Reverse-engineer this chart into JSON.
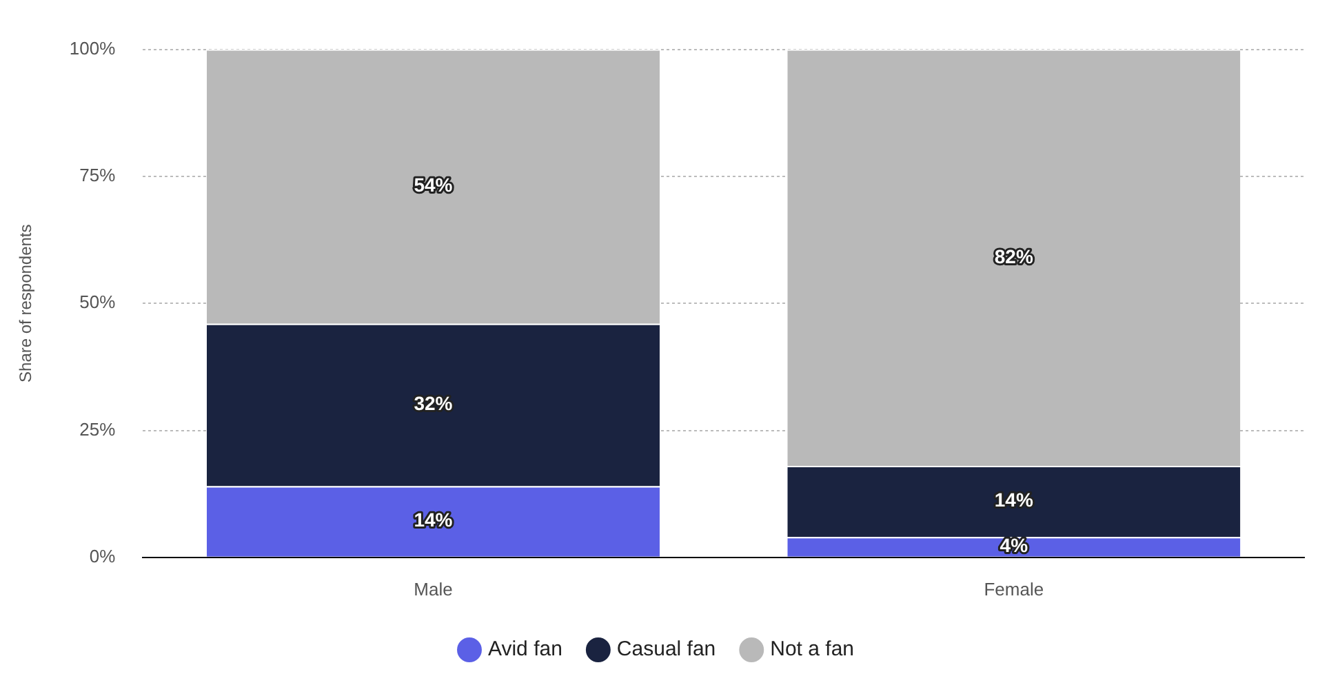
{
  "chart_data": {
    "type": "bar",
    "stacked": true,
    "ylabel": "Share of respondents",
    "categories": [
      "Male",
      "Female"
    ],
    "series": [
      {
        "name": "Avid fan",
        "color": "#5b60e6",
        "values": [
          14,
          4
        ],
        "value_labels": [
          "14%",
          "4%"
        ]
      },
      {
        "name": "Casual fan",
        "color": "#1a2340",
        "values": [
          32,
          14
        ],
        "value_labels": [
          "32%",
          "14%"
        ]
      },
      {
        "name": "Not a fan",
        "color": "#b9b9b9",
        "values": [
          54,
          82
        ],
        "value_labels": [
          "54%",
          "82%"
        ]
      }
    ],
    "ylim": [
      0,
      100
    ],
    "yticks": [
      {
        "value": 0,
        "label": "0%"
      },
      {
        "value": 25,
        "label": "25%"
      },
      {
        "value": 50,
        "label": "50%"
      },
      {
        "value": 75,
        "label": "75%"
      },
      {
        "value": 100,
        "label": "100%"
      }
    ],
    "grid": "y",
    "legend": "bottom"
  }
}
